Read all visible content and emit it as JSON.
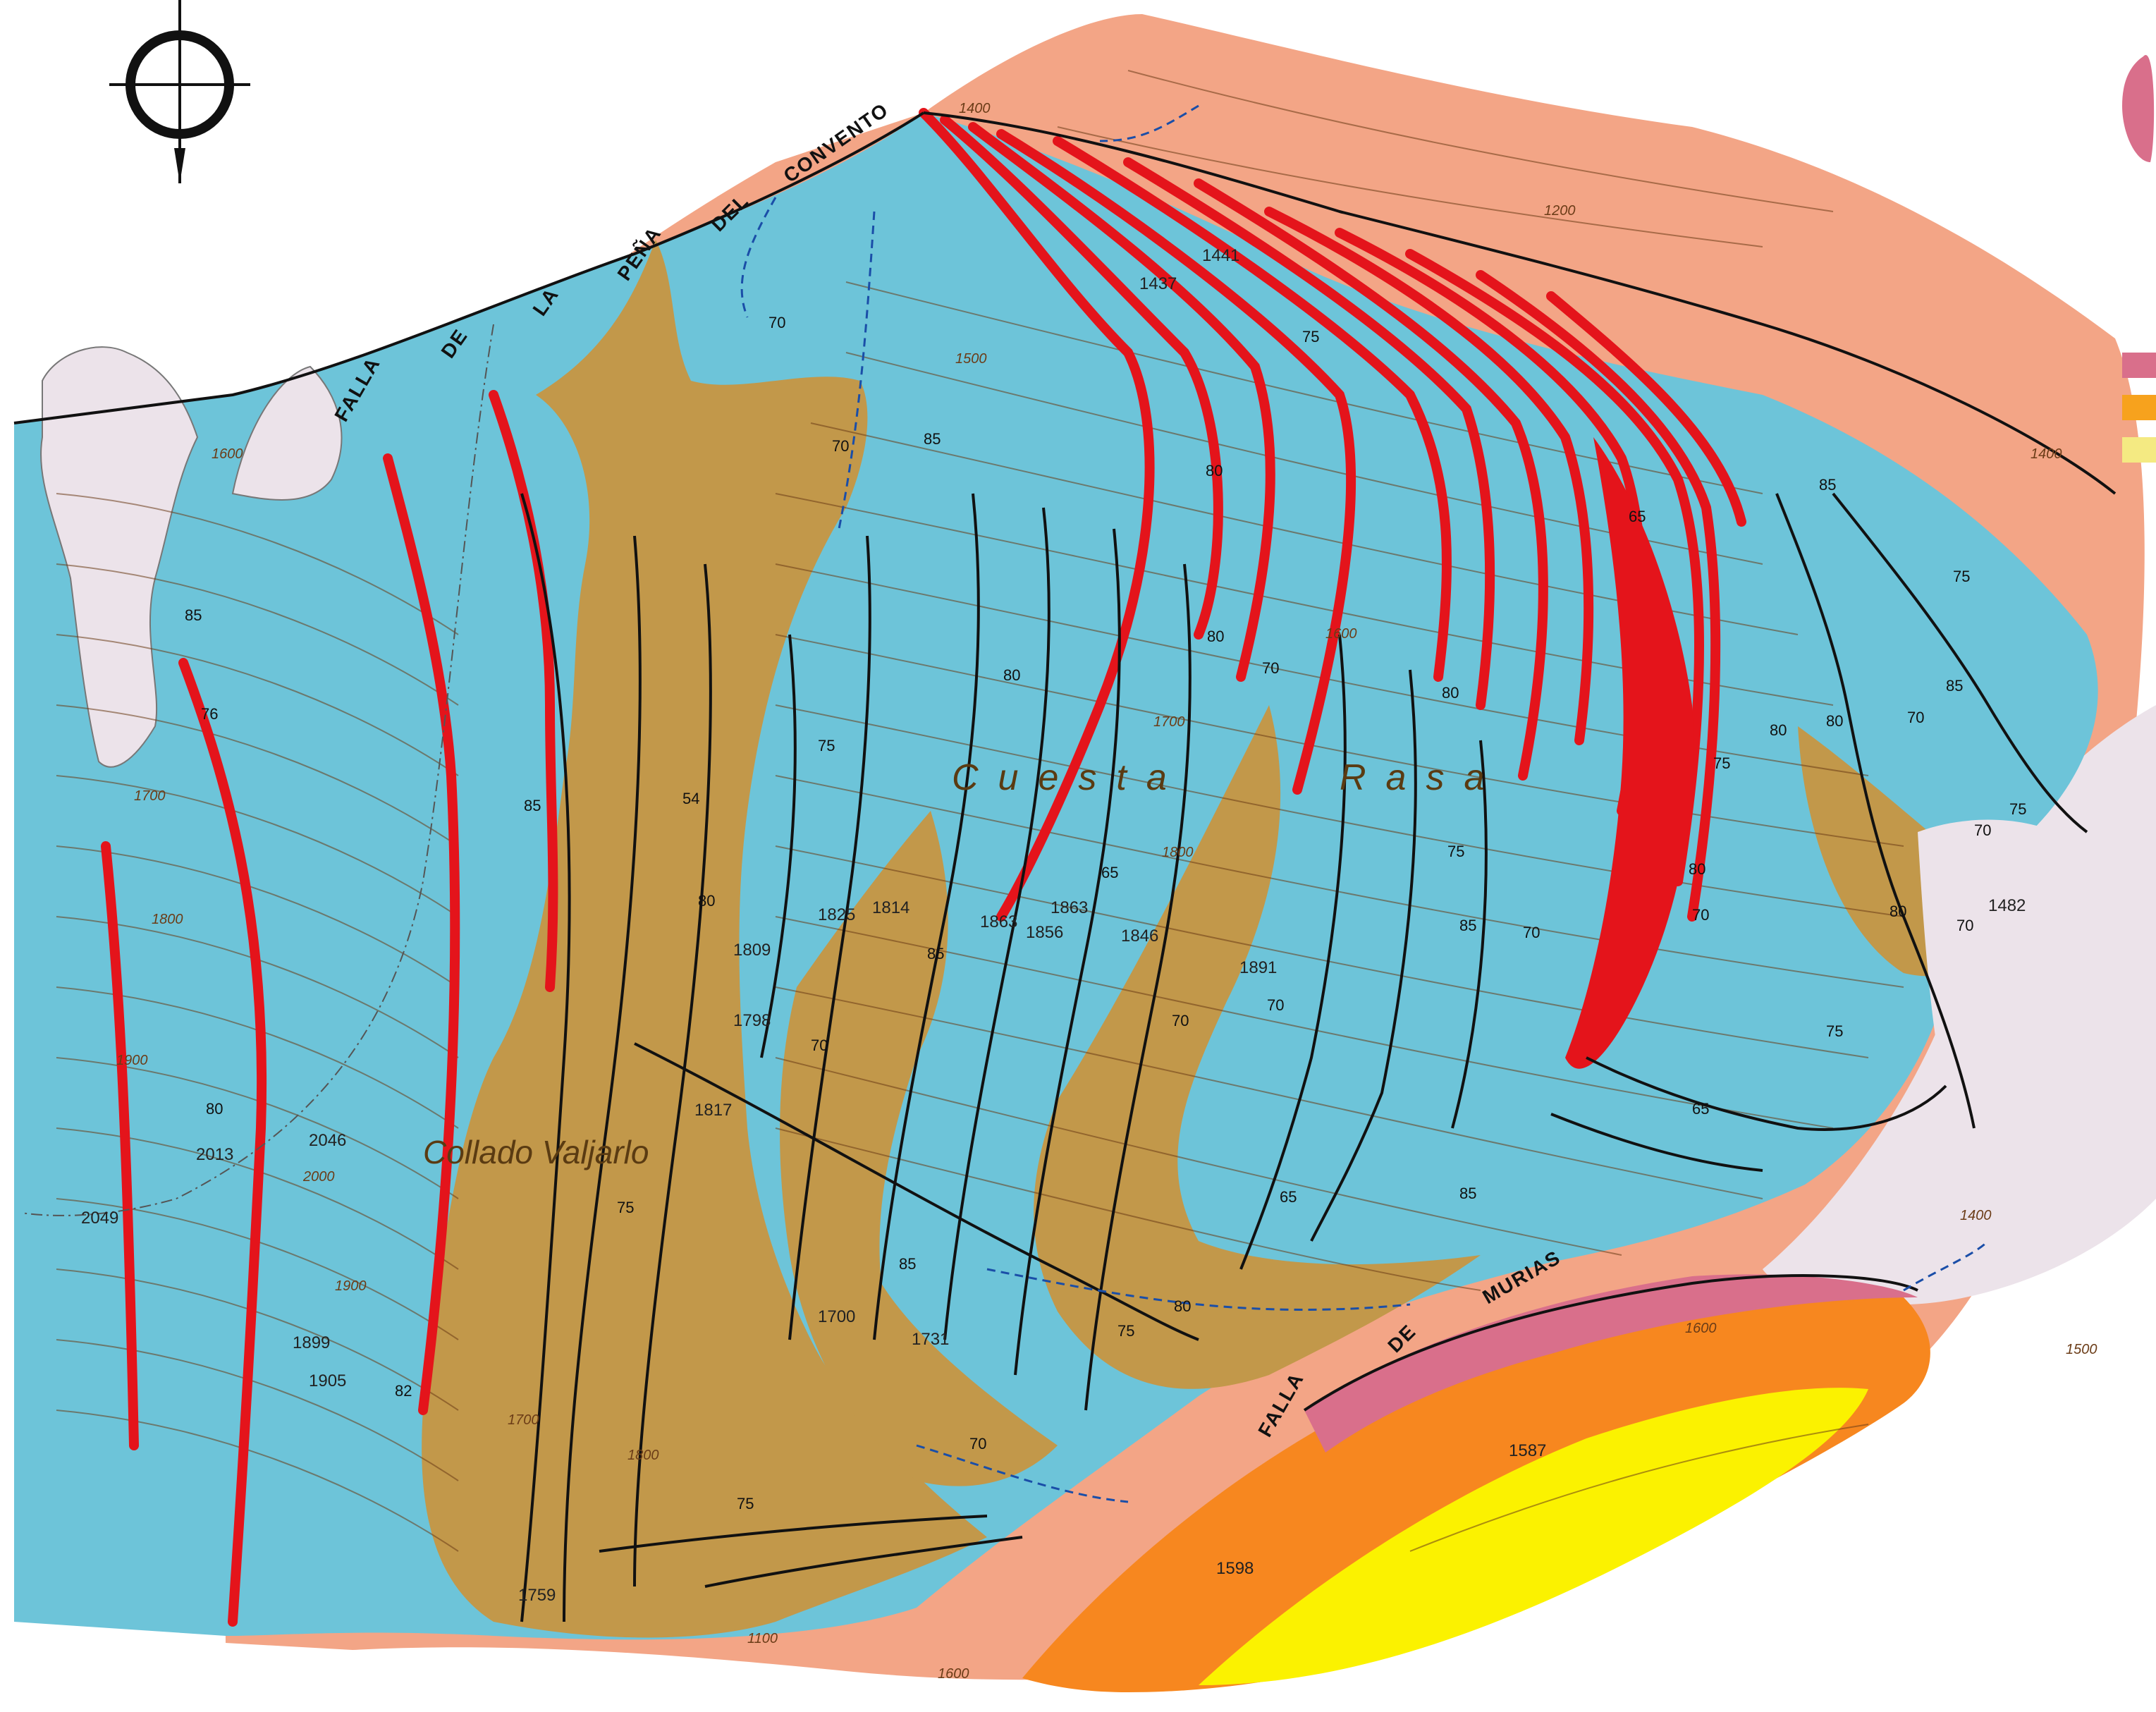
{
  "map": {
    "place_names": [
      "Collado Valjarlo",
      "Cuesta",
      "Rasa"
    ],
    "fault_names": {
      "north": [
        "FALLA",
        "DE",
        "LA",
        "PEÑA",
        "DEL",
        "CONVENTO"
      ],
      "south": [
        "FALLA",
        "DE",
        "MURIAS"
      ]
    },
    "spot_heights": [
      "2049",
      "2013",
      "2046",
      "1899",
      "1905",
      "1825",
      "1814",
      "1809",
      "1798",
      "1817",
      "1863",
      "1856",
      "1863",
      "1846",
      "1891",
      "1441",
      "1437",
      "1731",
      "1759",
      "1598",
      "1587",
      "1482",
      "1700"
    ],
    "contour_labels": [
      "1400",
      "1200",
      "1500",
      "1600",
      "1700",
      "1800",
      "1900",
      "2000",
      "1900",
      "1800",
      "1700",
      "1600",
      "1500",
      "1400",
      "1400",
      "1100",
      "1600",
      "1600",
      "1700",
      "1800"
    ],
    "dip_values": [
      "85",
      "76",
      "80",
      "82",
      "85",
      "75",
      "70",
      "70",
      "85",
      "54",
      "80",
      "75",
      "70",
      "85",
      "80",
      "65",
      "70",
      "80",
      "80",
      "70",
      "70",
      "75",
      "80",
      "75",
      "85",
      "70",
      "65",
      "70",
      "75",
      "80",
      "85",
      "75",
      "80",
      "80",
      "70",
      "80",
      "75",
      "70",
      "70",
      "75",
      "85",
      "65",
      "85",
      "80",
      "85",
      "75",
      "70",
      "75",
      "65"
    ],
    "colors": {
      "limestone_blue": "#6dc4d9",
      "light_blue": "#8ad4e4",
      "brown_unit": "#c2984a",
      "red_unit": "#e4141b",
      "salmon_unit": "#f3a586",
      "orange_unit": "#f7871f",
      "yellow_unit": "#fbf200",
      "pink_unit": "#d96f8b",
      "grey_unit": "#ece3ea"
    },
    "legend_swatches": [
      "#d96f8b",
      "#f7a21d",
      "#f4ea82"
    ]
  }
}
